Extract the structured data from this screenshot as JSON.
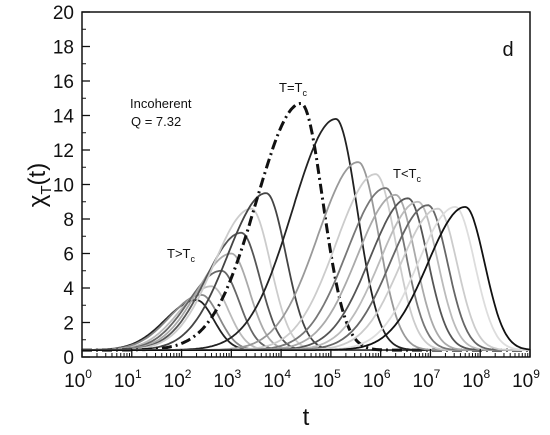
{
  "chart_data": {
    "type": "line",
    "title": "",
    "xlabel": "t",
    "ylabel": "χ_T(t)",
    "xscale": "log",
    "xlim": [
      0,
      9
    ],
    "ylim": [
      0,
      20
    ],
    "x_ticks": [
      {
        "base": "10",
        "exp": "0"
      },
      {
        "base": "10",
        "exp": "1"
      },
      {
        "base": "10",
        "exp": "2"
      },
      {
        "base": "10",
        "exp": "3"
      },
      {
        "base": "10",
        "exp": "4"
      },
      {
        "base": "10",
        "exp": "5"
      },
      {
        "base": "10",
        "exp": "6"
      },
      {
        "base": "10",
        "exp": "7"
      },
      {
        "base": "10",
        "exp": "8"
      },
      {
        "base": "10",
        "exp": "9"
      }
    ],
    "y_ticks": [
      "0",
      "2",
      "4",
      "6",
      "8",
      "10",
      "12",
      "14",
      "16",
      "18",
      "20"
    ],
    "panel_label": "d",
    "annotations": {
      "incoherent": "Incoherent",
      "q_value": "Q = 7.32",
      "t_eq_tc_main": "T=T",
      "t_eq_tc_sub": "c",
      "t_gt_tc_main": "T>T",
      "t_gt_tc_sub": "c",
      "t_lt_tc_main": "T<T",
      "t_lt_tc_sub": "c"
    },
    "series_note": "peak position log10(t), peak height, curve color, dash style",
    "series": [
      {
        "peak_log_t": 2.3,
        "peak": 3.3,
        "color": "#222222",
        "dash": "solid"
      },
      {
        "peak_log_t": 2.4,
        "peak": 3.6,
        "color": "#888888",
        "dash": "solid"
      },
      {
        "peak_log_t": 2.6,
        "peak": 4.1,
        "color": "#bbbbbb",
        "dash": "solid"
      },
      {
        "peak_log_t": 2.8,
        "peak": 5.0,
        "color": "#666666",
        "dash": "solid"
      },
      {
        "peak_log_t": 3.0,
        "peak": 6.0,
        "color": "#aaaaaa",
        "dash": "solid"
      },
      {
        "peak_log_t": 3.2,
        "peak": 7.2,
        "color": "#555555",
        "dash": "solid"
      },
      {
        "peak_log_t": 3.4,
        "peak": 8.6,
        "color": "#cccccc",
        "dash": "solid"
      },
      {
        "peak_log_t": 3.7,
        "peak": 9.5,
        "color": "#444444",
        "dash": "solid"
      },
      {
        "peak_log_t": 4.4,
        "peak": 14.7,
        "color": "#111111",
        "dash": "dashdot"
      },
      {
        "peak_log_t": 5.1,
        "peak": 13.8,
        "color": "#222222",
        "dash": "solid"
      },
      {
        "peak_log_t": 5.55,
        "peak": 11.3,
        "color": "#999999",
        "dash": "solid"
      },
      {
        "peak_log_t": 5.9,
        "peak": 10.6,
        "color": "#cccccc",
        "dash": "solid"
      },
      {
        "peak_log_t": 6.1,
        "peak": 9.8,
        "color": "#777777",
        "dash": "solid"
      },
      {
        "peak_log_t": 6.3,
        "peak": 9.4,
        "color": "#aaaaaa",
        "dash": "solid"
      },
      {
        "peak_log_t": 6.55,
        "peak": 9.2,
        "color": "#555555",
        "dash": "solid"
      },
      {
        "peak_log_t": 6.75,
        "peak": 9.0,
        "color": "#bbbbbb",
        "dash": "solid"
      },
      {
        "peak_log_t": 6.95,
        "peak": 8.8,
        "color": "#666666",
        "dash": "solid"
      },
      {
        "peak_log_t": 7.15,
        "peak": 8.6,
        "color": "#cccccc",
        "dash": "solid"
      },
      {
        "peak_log_t": 7.5,
        "peak": 8.7,
        "color": "#dddddd",
        "dash": "solid"
      },
      {
        "peak_log_t": 7.7,
        "peak": 8.7,
        "color": "#111111",
        "dash": "solid"
      }
    ]
  }
}
